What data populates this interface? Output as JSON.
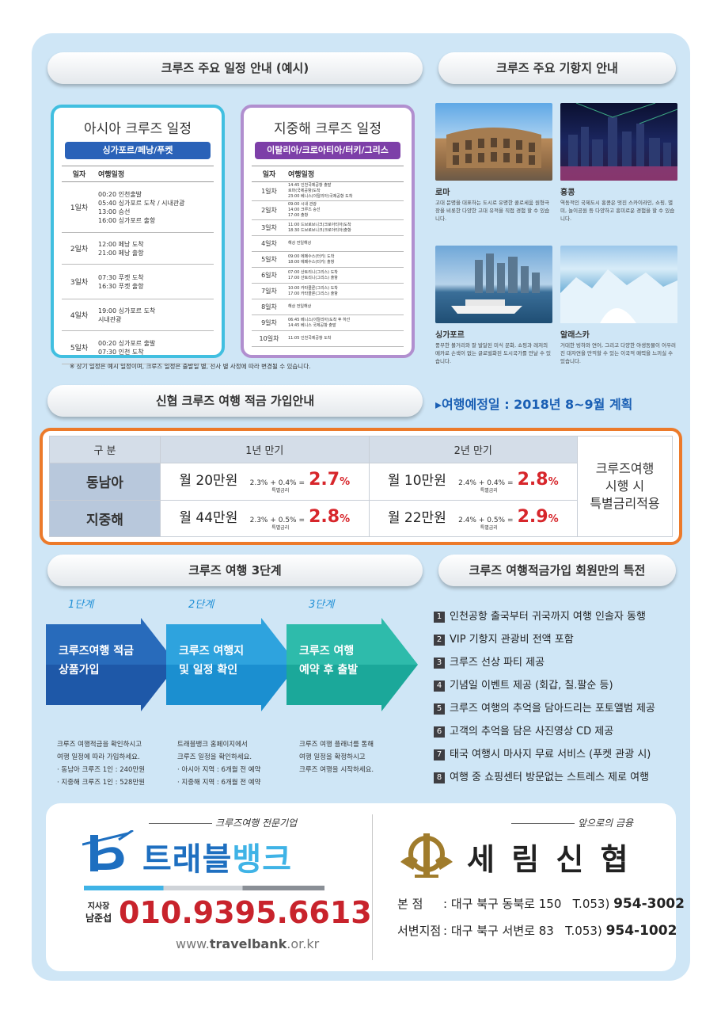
{
  "headers": {
    "schedule": "크루즈 주요 일정 안내 (예시)",
    "ports": "크루즈 주요 기항지 안내",
    "savings": "신협 크루즈 여행 적금 가입안내",
    "steps": "크루즈 여행 3단계",
    "benefits": "크루즈 여행적금가입 회원만의 특전"
  },
  "asia": {
    "title": "아시아 크루즈 일정",
    "route": "싱가포르/페낭/푸켓",
    "col_day": "일자",
    "col_sched": "여행일정",
    "rows": [
      {
        "day": "1일차",
        "sched": "00:20   인천출발\n05:40   싱가포르 도착 / 시내관광\n13:00   승선\n16:00   싱가포르 출항"
      },
      {
        "day": "2일차",
        "sched": "12:00   페낭 도착\n21:00   페낭 출항"
      },
      {
        "day": "3일차",
        "sched": "07:30   푸켓 도착\n16:30   푸켓 출항"
      },
      {
        "day": "4일차",
        "sched": "19:00   싱가포르 도착\n            시내관광"
      },
      {
        "day": "5일차",
        "sched": "00:20   싱가포르 출발\n07:30   인천 도착"
      }
    ]
  },
  "med": {
    "title": "지중해 크루즈 일정",
    "route": "이탈리아/크로아티아/터키/그리스",
    "col_day": "일자",
    "col_sched": "여행일정",
    "rows": [
      {
        "day": "1일차",
        "sched": "14:45   인천국제공항 출발\n            로마(국제공항)도착\n23:00   베니스(이탈리아)국제공항 도착"
      },
      {
        "day": "2일차",
        "sched": "09:00   시내 관광\n14:00   크루즈 승선\n17:00   출항"
      },
      {
        "day": "3일차",
        "sched": "11:00   드브로브니크(크로아티아)도착\n18:30   드브로브니크(크로아티아)출항"
      },
      {
        "day": "4일차",
        "sched": "해상      전일해상"
      },
      {
        "day": "5일차",
        "sched": "09:00   에페수스(터키) 도착\n18:00   에페수스(터키) 출항"
      },
      {
        "day": "6일차",
        "sched": "07:00   산토리니(그리스) 도착\n17:00   산토리니(그리스) 출항"
      },
      {
        "day": "7일차",
        "sched": "10:00   카타콜론(그리스) 도착\n17:00   카타콜론(그리스) 출항"
      },
      {
        "day": "8일차",
        "sched": "해상      전일해상"
      },
      {
        "day": "9일차",
        "sched": "06:45   베니스(이탈리아)도착 후 하선\n14:45   베니스 국제공항 출발"
      },
      {
        "day": "10일차",
        "sched": "11:05   인천국제공항 도착"
      }
    ]
  },
  "schedule_note": "※ 상기 일정은 예시 일정이며, 크루즈 일정은 출발일 별, 선사 별 사정에 따라 변경될 수 있습니다.",
  "destinations": [
    {
      "name": "로마",
      "desc": "고대 문명을 대표하는 도시로 유명한 콜로세움 원형극장을 비롯한 다양한 고대 유적을 직접 경험 할 수 있습니다."
    },
    {
      "name": "홍콩",
      "desc": "역동적인 국제도시 홍콩은 멋진 스카이라인, 쇼핑, 별미, 놀이공원 등 다양하고 흥미로운 경험을 할 수 있습니다."
    },
    {
      "name": "싱가포르",
      "desc": "풍부한 볼거리와 잘 발달된 미식 문화, 쇼핑과 레저의 메카로 손색이 없는 글로벌화된 도시국가를 만날 수 있습니다."
    },
    {
      "name": "알래스카",
      "desc": "거대한 빙하와 연어, 그리고 다양한 야생동물이 어우러진 대자연을 만끽할 수 있는 이국적 매력을 느끼실 수 있습니다."
    }
  ],
  "travel_date": "▸여행예정일 : 2018년 8~9월 계획",
  "savings": {
    "col_label": "구 분",
    "col_1y": "1년 만기",
    "col_2y": "2년 만기",
    "note": "크루즈여행\n시행 시\n특별금리적용",
    "special_label": "특별금리",
    "rows": [
      {
        "label": "동남아",
        "y1": {
          "amount": "월 20만원",
          "formula": "2.3% + 0.4% =",
          "rate": "2.7",
          "pct": "%"
        },
        "y2": {
          "amount": "월 10만원",
          "formula": "2.4% + 0.4% =",
          "rate": "2.8",
          "pct": "%"
        }
      },
      {
        "label": "지중해",
        "y1": {
          "amount": "월 44만원",
          "formula": "2.3% + 0.5% =",
          "rate": "2.8",
          "pct": "%"
        },
        "y2": {
          "amount": "월 22만원",
          "formula": "2.4% + 0.5% =",
          "rate": "2.9",
          "pct": "%"
        }
      }
    ]
  },
  "steps": [
    {
      "label": "1단계",
      "text": "크루즈여행 적금\n상품가입",
      "note": "크루즈 여행적금을 확인하시고\n여행 일정에 따라 가입하세요.\n· 동남아 크루즈 1인 : 240만원\n· 지중해 크루즈 1인 : 528만원"
    },
    {
      "label": "2단계",
      "text": "크루즈 여행지\n및 일정 확인",
      "note": "트래블뱅크 홈페이지에서\n크루즈 일정을 확인하세요.\n· 아시아 지역 : 6개월 전 예약\n· 지중해 지역 : 6개월 전 예약"
    },
    {
      "label": "3단계",
      "text": "크루즈 여행\n예약 후 출발",
      "note": "크루즈 여행 플래너를 통해\n여행 일정을 확정하시고\n크루즈 여행을 시작하세요."
    }
  ],
  "benefits": [
    {
      "num": "1",
      "text": "인천공항 출국부터 귀국까지 여행 인솔자 동행"
    },
    {
      "num": "2",
      "text": "VIP 기항지 관광비 전액 포함"
    },
    {
      "num": "3",
      "text": "크루즈 선상 파티 제공"
    },
    {
      "num": "4",
      "text": "기념일 이벤트 제공 (회갑, 칠.팔순 등)"
    },
    {
      "num": "5",
      "text": "크루즈 여행의 추억을 담아드리는 포토앨범 제공"
    },
    {
      "num": "6",
      "text": "고객의 추억을 담은 사진영상 CD 제공"
    },
    {
      "num": "7",
      "text": "태국 여행시 마사지 무료 서비스 (푸켓 관광 시)"
    },
    {
      "num": "8",
      "text": "여행 중 쇼핑센터 방문없는 스트레스 제로 여행"
    }
  ],
  "travelbank": {
    "tagline": "크루즈여행 전문기업",
    "name_part1": "트래블",
    "name_part2": "뱅크",
    "title": "지사장",
    "person": "남준섭",
    "phone": "010.9395.6613",
    "url_prefix": "www.",
    "url_bold": "travelbank",
    "url_suffix": ".or.kr"
  },
  "serim": {
    "tagline": "앞으로의 금융",
    "name": "세 림 신 협",
    "branches": [
      {
        "label": "본      점",
        "address": ": 대구 북구 동북로 150",
        "tel_prefix": "T.053)",
        "tel": "954-3002"
      },
      {
        "label": "서변지점",
        "address": ": 대구 북구 서변로 83",
        "tel_prefix": "T.053)",
        "tel": "954-1002"
      }
    ]
  },
  "colors": {
    "accent_red": "#d7262b",
    "orange_border": "#ec7a2a",
    "asia_route": "#2a62b8",
    "med_route": "#7d3fa8"
  }
}
